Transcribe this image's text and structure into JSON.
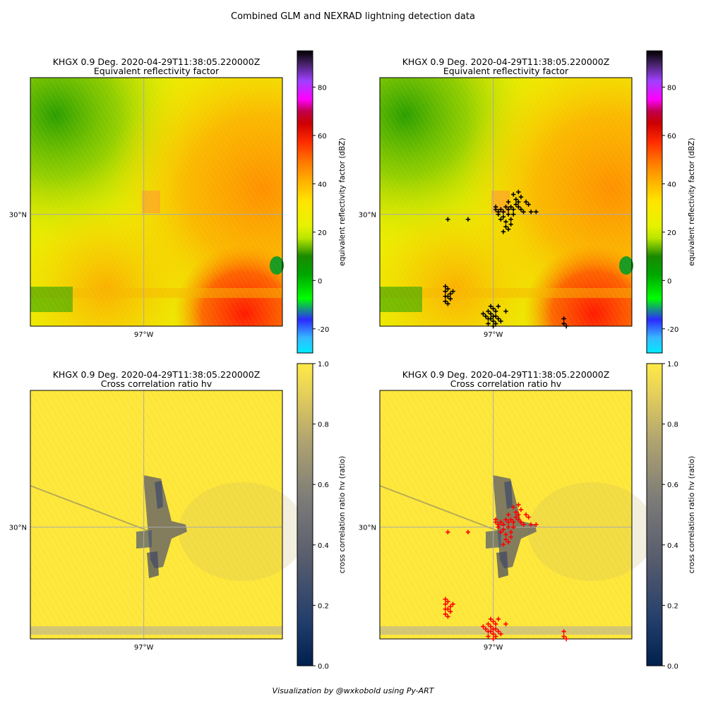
{
  "figure": {
    "suptitle": "Combined GLM and NEXRAD lightning detection data",
    "footer": "Visualization by @wxkobold using Py-ART"
  },
  "colors": {
    "glm_marker_reflectivity": "#000000",
    "glm_marker_correlation": "#ff0000",
    "gridline": "#aaaaaa"
  },
  "chart_data": [
    {
      "type": "heatmap",
      "panel": "top-left",
      "title": "KHGX 0.9 Deg. 2020-04-29T11:38:05.220000Z",
      "subtitle": "Equivalent reflectivity factor",
      "x_tick_labels": [
        "97°W"
      ],
      "y_tick_labels": [
        "30°N"
      ],
      "grid": true,
      "colorbar": {
        "label": "equivalent reflectivity factor (dBZ)",
        "range": [
          -30,
          95
        ],
        "ticks": [
          -20,
          0,
          20,
          40,
          60,
          80
        ],
        "colormap": "NWSRef"
      },
      "glm_overlay": false
    },
    {
      "type": "heatmap",
      "panel": "top-right",
      "title": "KHGX 0.9 Deg. 2020-04-29T11:38:05.220000Z",
      "subtitle": "Equivalent reflectivity factor",
      "x_tick_labels": [
        "97°W"
      ],
      "y_tick_labels": [
        "30°N"
      ],
      "grid": true,
      "colorbar": {
        "label": "equivalent reflectivity factor (dBZ)",
        "range": [
          -30,
          95
        ],
        "ticks": [
          -20,
          0,
          20,
          40,
          60,
          80
        ],
        "colormap": "NWSRef"
      },
      "glm_overlay": true,
      "marker": "+",
      "marker_color": "#000000"
    },
    {
      "type": "heatmap",
      "panel": "bottom-left",
      "title": "KHGX 0.9 Deg. 2020-04-29T11:38:05.220000Z",
      "subtitle": "Cross correlation ratio hv",
      "x_tick_labels": [
        "97°W"
      ],
      "y_tick_labels": [
        "30°N"
      ],
      "grid": true,
      "colorbar": {
        "label": "cross correlation ratio hv (ratio)",
        "range": [
          0,
          1
        ],
        "ticks": [
          "0.0",
          "0.2",
          "0.4",
          "0.6",
          "0.8",
          "1.0"
        ],
        "colormap": "cividis"
      },
      "glm_overlay": false
    },
    {
      "type": "heatmap",
      "panel": "bottom-right",
      "title": "KHGX 0.9 Deg. 2020-04-29T11:38:05.220000Z",
      "subtitle": "Cross correlation ratio hv",
      "x_tick_labels": [
        "97°W"
      ],
      "y_tick_labels": [
        "30°N"
      ],
      "grid": true,
      "colorbar": {
        "label": "cross correlation ratio hv (ratio)",
        "range": [
          0,
          1
        ],
        "ticks": [
          "0.0",
          "0.2",
          "0.4",
          "0.6",
          "0.8",
          "1.0"
        ],
        "colormap": "cividis"
      },
      "glm_overlay": true,
      "marker": "+",
      "marker_color": "#ff0000"
    }
  ]
}
